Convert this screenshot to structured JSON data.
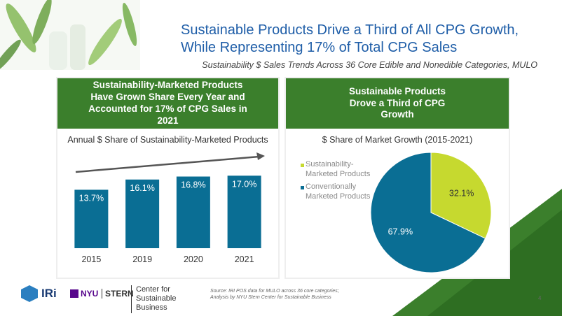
{
  "slide": {
    "title": "Sustainable Products Drive a Third of All CPG Growth, While Representing 17% of Total CPG Sales",
    "subtitle": "Sustainability $ Sales Trends Across 36 Core Edible and Nonedible Categories, MULO",
    "source": "Source: IRI POS data for MULO across 36 core categories; Analysis by NYU Stern Center for Sustainable Business",
    "page": 4,
    "logos": {
      "iri": "IRi",
      "nyu": "NYU",
      "stern": "STERN",
      "csb": "Center for Sustainable Business"
    }
  },
  "chart_data": [
    {
      "type": "bar",
      "title": "Sustainability-Marketed Products Have Grown Share Every Year and Accounted for 17% of CPG Sales in 2021",
      "subtitle": "Annual $ Share of Sustainability-Marketed Products",
      "categories": [
        "2015",
        "2019",
        "2020",
        "2021"
      ],
      "values": [
        13.7,
        16.1,
        16.8,
        17.0
      ],
      "value_labels": [
        "13.7%",
        "16.1%",
        "16.8%",
        "17.0%"
      ],
      "color": "#0a6e94"
    },
    {
      "type": "pie",
      "title": "Sustainable Products Drove a Third of CPG Growth",
      "subtitle": "$ Share of Market Growth (2015-2021)",
      "categories": [
        "Sustainability-Marketed Products",
        "Conventionally Marketed Products"
      ],
      "values": [
        32.1,
        67.9
      ],
      "value_labels": [
        "32.1%",
        "67.9%"
      ],
      "colors": [
        "#c6d92f",
        "#0a6e94"
      ]
    }
  ]
}
